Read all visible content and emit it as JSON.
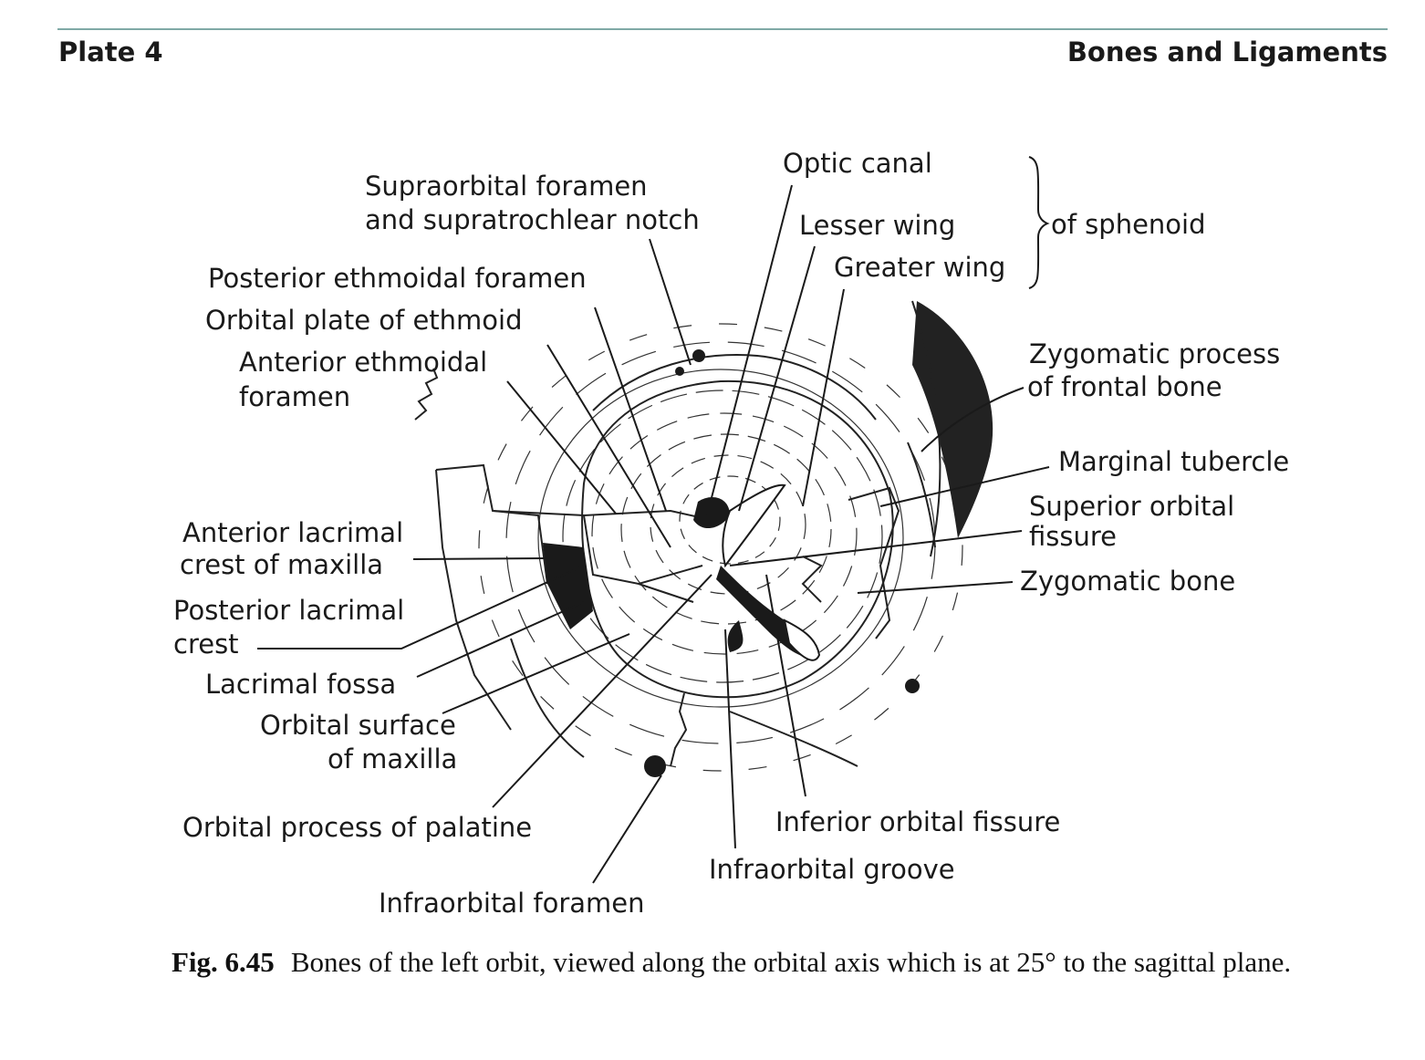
{
  "header": {
    "plate": "Plate 4",
    "section": "Bones and Ligaments"
  },
  "labels": {
    "optic_canal": "Optic canal",
    "supraorbital_1": "Supraorbital foramen",
    "supraorbital_2": "and supratrochlear notch",
    "lesser_wing": "Lesser wing",
    "of_sphenoid": "of sphenoid",
    "greater_wing": "Greater wing",
    "posterior_ethmoidal": "Posterior ethmoidal foramen",
    "orbital_plate": "Orbital plate of ethmoid",
    "anterior_ethmoidal_1": "Anterior ethmoidal",
    "anterior_ethmoidal_2": "foramen",
    "zygomatic_process_1": "Zygomatic process",
    "zygomatic_process_2": "of frontal bone",
    "marginal_tubercle": "Marginal tubercle",
    "superior_fissure_1": "Superior orbital",
    "superior_fissure_2": "fissure",
    "zygomatic_bone": "Zygomatic bone",
    "anterior_lacrimal_1": "Anterior lacrimal",
    "anterior_lacrimal_2": "crest of maxilla",
    "posterior_lacrimal_1": "Posterior lacrimal",
    "posterior_lacrimal_2": "crest",
    "lacrimal_fossa": "Lacrimal fossa",
    "orbital_surface_1": "Orbital surface",
    "orbital_surface_2": "of maxilla",
    "orbital_process": "Orbital process of palatine",
    "inferior_fissure": "Inferior orbital fissure",
    "infraorbital_groove": "Infraorbital groove",
    "infraorbital_foramen": "Infraorbital foramen"
  },
  "caption": {
    "fig": "Fig. 6.45",
    "text": "Bones of the left orbit, viewed along the orbital axis which is at 25° to the sagittal plane."
  }
}
